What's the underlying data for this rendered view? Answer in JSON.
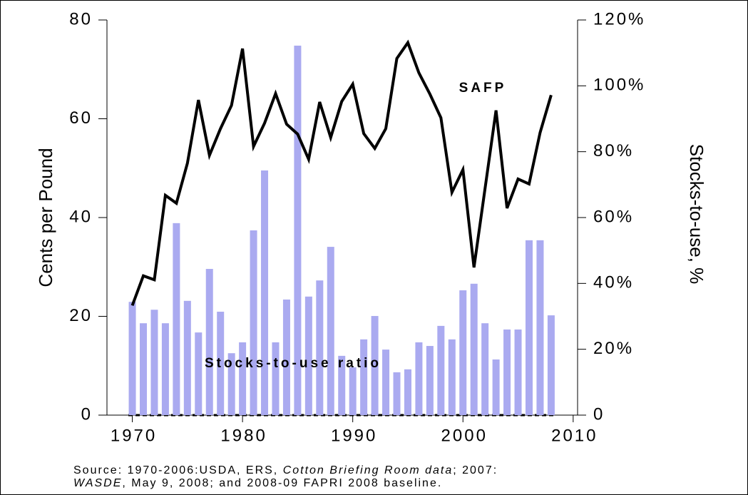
{
  "chart_data": {
    "type": "bar-line",
    "y_label": "Cents per Pound",
    "y2_label": "Stocks-to-use, %",
    "x": [
      1970,
      1971,
      1972,
      1973,
      1974,
      1975,
      1976,
      1977,
      1978,
      1979,
      1980,
      1981,
      1982,
      1983,
      1984,
      1985,
      1986,
      1987,
      1988,
      1989,
      1990,
      1991,
      1992,
      1993,
      1994,
      1995,
      1996,
      1997,
      1998,
      1999,
      2000,
      2001,
      2002,
      2003,
      2004,
      2005,
      2006,
      2007,
      2008
    ],
    "xlim": [
      1967.7,
      2010.4
    ],
    "xticks": [
      1970,
      1980,
      1990,
      2000,
      2010
    ],
    "ylim": [
      0,
      80
    ],
    "yticks": [
      0,
      20,
      40,
      60,
      80
    ],
    "y2lim": [
      0,
      120
    ],
    "y2ticks": [
      0,
      {
        "value": 20,
        "label": "20%"
      },
      {
        "value": 40,
        "label": "40%"
      },
      {
        "value": 60,
        "label": "60%"
      },
      {
        "value": 80,
        "label": "80%"
      },
      {
        "value": 100,
        "label": "100%"
      },
      {
        "value": 120,
        "label": "120%"
      }
    ],
    "series": [
      {
        "name": "Stocks-to-use ratio",
        "type": "bar",
        "axis": "y2",
        "color": "#aaaaf0",
        "values": [
          34.4,
          27.9,
          32,
          27.9,
          58.3,
          34.7,
          25.1,
          44.4,
          31.4,
          18.8,
          22.1,
          56.1,
          74.3,
          22.1,
          35.1,
          112.2,
          36,
          40.9,
          51.1,
          18,
          14.5,
          23,
          30.1,
          19.9,
          13,
          13.9,
          22.1,
          21,
          27.1,
          23,
          37.9,
          39.9,
          27.9,
          16.9,
          26,
          26,
          53.1,
          53.1,
          30.3
        ]
      },
      {
        "name": "SAFP",
        "type": "line",
        "axis": "y",
        "color": "#000000",
        "values": [
          22.2,
          28.2,
          27.4,
          44.5,
          42.9,
          51,
          63.8,
          52.6,
          58,
          62.7,
          74.2,
          54.4,
          59.1,
          65.1,
          58.9,
          56.9,
          51.8,
          63.4,
          56.2,
          63.5,
          67,
          57,
          54,
          58,
          72.2,
          75.4,
          69.3,
          65,
          60.2,
          45.1,
          49.7,
          29.9,
          45.8,
          61.7,
          41.9,
          47.8,
          46.8,
          57.2,
          64.8
        ]
      }
    ],
    "source": [
      [
        {
          "text": "Source: 1970-2006:USDA, ERS, ",
          "italic": false
        },
        {
          "text": "Cotton Briefing Room data",
          "italic": true
        },
        {
          "text": "; 2007:",
          "italic": false
        }
      ],
      [
        {
          "text": "WASDE",
          "italic": true
        },
        {
          "text": ", May 9, 2008; and 2008-09 FAPRI 2008 baseline.",
          "italic": false
        }
      ]
    ]
  }
}
